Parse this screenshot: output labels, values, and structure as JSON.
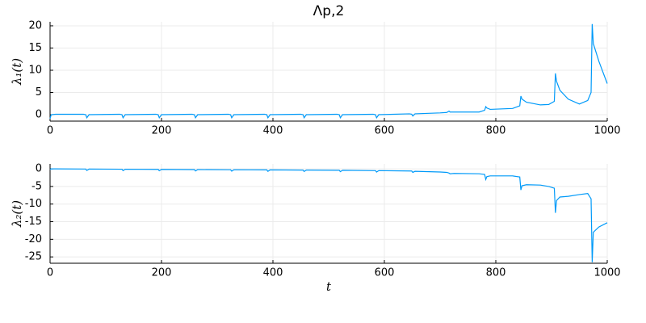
{
  "chart_data": [
    {
      "type": "line",
      "title": "Λp,2",
      "ylabel": "λ₁(t)",
      "color": "#009af9",
      "grid": true,
      "xlim": [
        0,
        1000
      ],
      "ylim": [
        -1.45,
        20.9
      ],
      "xticks": [
        0,
        200,
        400,
        600,
        800,
        1000
      ],
      "yticks": [
        0,
        5,
        10,
        15,
        20
      ],
      "x": [
        0,
        2,
        10,
        60,
        64,
        66,
        70,
        125,
        129,
        131,
        135,
        190,
        194,
        196,
        200,
        255,
        259,
        261,
        265,
        320,
        324,
        326,
        330,
        385,
        389,
        391,
        395,
        450,
        454,
        456,
        460,
        515,
        519,
        521,
        525,
        580,
        584,
        586,
        590,
        645,
        649,
        651,
        655,
        700,
        712,
        716,
        718,
        725,
        770,
        780,
        782,
        784,
        790,
        830,
        843,
        845,
        847,
        855,
        880,
        895,
        905,
        907,
        909,
        915,
        930,
        950,
        965,
        971,
        973,
        975,
        985,
        1000
      ],
      "values": [
        -0.9,
        0,
        0.1,
        0.1,
        0,
        -0.7,
        0,
        0.1,
        0,
        -0.7,
        0,
        0.1,
        0,
        -0.7,
        0,
        0.1,
        0,
        -0.7,
        0,
        0.1,
        0,
        -0.7,
        0,
        0.1,
        0,
        -0.7,
        0,
        0.1,
        0,
        -0.7,
        0,
        0.1,
        0,
        -0.7,
        0,
        0.1,
        0,
        -0.7,
        0,
        0.2,
        0.1,
        -0.3,
        0.2,
        0.4,
        0.5,
        0.8,
        0.6,
        0.6,
        0.6,
        1.0,
        1.8,
        1.5,
        1.2,
        1.4,
        2.0,
        4.2,
        3.5,
        2.8,
        2.2,
        2.3,
        3.0,
        9.3,
        7.5,
        5.5,
        3.5,
        2.4,
        3.2,
        5.0,
        20.4,
        16,
        12,
        7
      ]
    },
    {
      "type": "line",
      "ylabel": "λ₂(t)",
      "xlabel": "t",
      "color": "#009af9",
      "grid": true,
      "xlim": [
        0,
        1000
      ],
      "ylim": [
        -26.8,
        1.4
      ],
      "xticks": [
        0,
        200,
        400,
        600,
        800,
        1000
      ],
      "yticks": [
        0,
        -5,
        -10,
        -15,
        -20,
        -25
      ],
      "x": [
        0,
        2,
        10,
        60,
        64,
        66,
        70,
        125,
        129,
        131,
        135,
        190,
        194,
        196,
        200,
        255,
        259,
        261,
        265,
        320,
        324,
        326,
        330,
        385,
        389,
        391,
        395,
        450,
        454,
        456,
        460,
        515,
        519,
        521,
        525,
        580,
        584,
        586,
        590,
        645,
        649,
        651,
        655,
        700,
        712,
        716,
        718,
        725,
        770,
        780,
        782,
        784,
        790,
        830,
        843,
        845,
        847,
        855,
        880,
        895,
        905,
        907,
        909,
        915,
        930,
        950,
        965,
        971,
        973,
        975,
        985,
        1000
      ],
      "values": [
        -0.2,
        0,
        0,
        -0.05,
        -0.05,
        -0.45,
        -0.05,
        -0.1,
        -0.1,
        -0.5,
        -0.1,
        -0.15,
        -0.15,
        -0.55,
        -0.15,
        -0.2,
        -0.2,
        -0.6,
        -0.2,
        -0.25,
        -0.25,
        -0.65,
        -0.25,
        -0.3,
        -0.3,
        -0.7,
        -0.3,
        -0.35,
        -0.35,
        -0.75,
        -0.35,
        -0.4,
        -0.4,
        -0.8,
        -0.4,
        -0.5,
        -0.5,
        -0.9,
        -0.5,
        -0.6,
        -0.6,
        -1.0,
        -0.7,
        -0.9,
        -1.0,
        -1.2,
        -1.4,
        -1.3,
        -1.4,
        -1.6,
        -3.0,
        -2.2,
        -2.0,
        -2.0,
        -2.3,
        -6.0,
        -4.8,
        -4.5,
        -4.6,
        -5.0,
        -5.5,
        -12.5,
        -9.0,
        -8.0,
        -7.8,
        -7.3,
        -7.0,
        -8.5,
        -26.5,
        -18,
        -16.5,
        -15.3
      ]
    }
  ]
}
